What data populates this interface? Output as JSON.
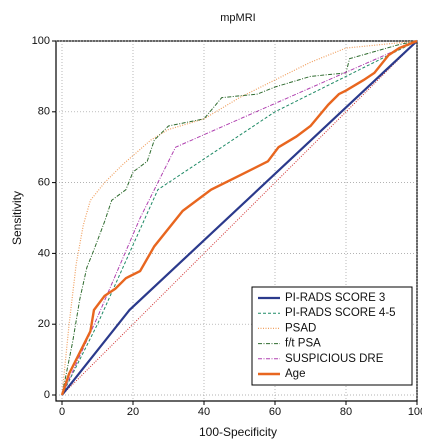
{
  "chart_data": {
    "type": "line",
    "title": "mpMRI",
    "x_label": "100-Specificity",
    "y_label": "Sensitivity",
    "xlim": [
      0,
      100
    ],
    "ylim": [
      0,
      100
    ],
    "xticks": [
      0,
      20,
      40,
      60,
      80,
      100
    ],
    "yticks": [
      0,
      20,
      40,
      60,
      80,
      100
    ],
    "grid": true,
    "legend": "lower right",
    "series": [
      {
        "name": "PI-RADS SCORE 3",
        "color": "#2b3a8c",
        "width": 2.2,
        "dash": "none",
        "x": [
          0,
          19,
          100
        ],
        "values": [
          0,
          24,
          100
        ]
      },
      {
        "name": "PI-RADS SCORE 4-5",
        "color": "#1f8a66",
        "width": 1,
        "dash": "3,2",
        "x": [
          0,
          10,
          27,
          60,
          100
        ],
        "values": [
          0,
          20,
          58,
          80,
          100
        ]
      },
      {
        "name": "PSAD",
        "color": "#f0a060",
        "width": 1.2,
        "dash": "1,1.5",
        "x": [
          0,
          2,
          4,
          6,
          8,
          12,
          17,
          25,
          30,
          40,
          50,
          60,
          70,
          80,
          90,
          100
        ],
        "values": [
          0,
          20,
          37,
          48,
          55,
          60,
          65,
          72,
          75,
          78,
          84,
          89,
          94,
          98,
          99,
          100
        ]
      },
      {
        "name": "f/t PSA",
        "color": "#2e6b2e",
        "width": 1,
        "dash": "4,1.5,1,1.5",
        "x": [
          0,
          3,
          5,
          7,
          9,
          12,
          14,
          18,
          20,
          24,
          26,
          30,
          40,
          45,
          55,
          60,
          70,
          80,
          81,
          88,
          95,
          100
        ],
        "values": [
          0,
          15,
          27,
          36,
          41,
          49,
          55,
          58,
          63,
          66,
          72,
          76,
          78,
          84,
          85,
          87,
          90,
          91,
          95,
          97,
          99,
          100
        ]
      },
      {
        "name": "SUSPICIOUS DRE",
        "color": "#b040b0",
        "width": 1,
        "dash": "4,1.5,1,1.5",
        "x": [
          0,
          10,
          22,
          32,
          100
        ],
        "values": [
          0,
          22,
          50,
          70,
          100
        ]
      },
      {
        "name": "Age",
        "color": "#e8661f",
        "width": 2.4,
        "dash": "none",
        "x": [
          0,
          2,
          5,
          8,
          9,
          12,
          15,
          18,
          22,
          26,
          34,
          42,
          50,
          58,
          61,
          66,
          70,
          75,
          78,
          80,
          85,
          88,
          92,
          95,
          100
        ],
        "values": [
          0,
          6,
          12,
          18,
          24,
          28,
          30,
          33,
          35,
          42,
          52,
          58,
          62,
          66,
          70,
          73,
          76,
          82,
          85,
          86,
          89,
          91,
          96,
          98,
          100
        ]
      }
    ]
  }
}
